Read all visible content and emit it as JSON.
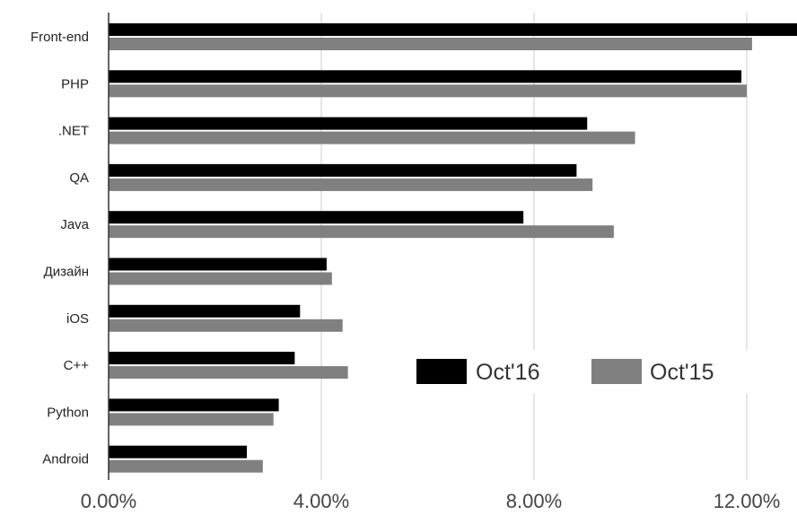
{
  "chart_data": {
    "type": "bar",
    "orientation": "horizontal",
    "categories": [
      "Front-end",
      "PHP",
      ".NET",
      "QA",
      "Java",
      "Дизайн",
      "iOS",
      "C++",
      "Python",
      "Android"
    ],
    "series": [
      {
        "name": "Oct'16",
        "color": "#000000",
        "values": [
          13.0,
          11.9,
          9.0,
          8.8,
          7.8,
          4.1,
          3.6,
          3.5,
          3.2,
          2.6
        ]
      },
      {
        "name": "Oct'15",
        "color": "#808080",
        "values": [
          12.1,
          12.0,
          9.9,
          9.1,
          9.5,
          4.2,
          4.4,
          4.5,
          3.1,
          2.9
        ]
      }
    ],
    "xlim": [
      0,
      12.9
    ],
    "xticks": [
      0,
      4,
      8,
      12
    ],
    "xtick_labels": [
      "0.00%",
      "4.00%",
      "8.00%",
      "12.00%"
    ],
    "grid": true,
    "legend_position": "inside-lower-right",
    "title": "",
    "xlabel": "",
    "ylabel": ""
  }
}
